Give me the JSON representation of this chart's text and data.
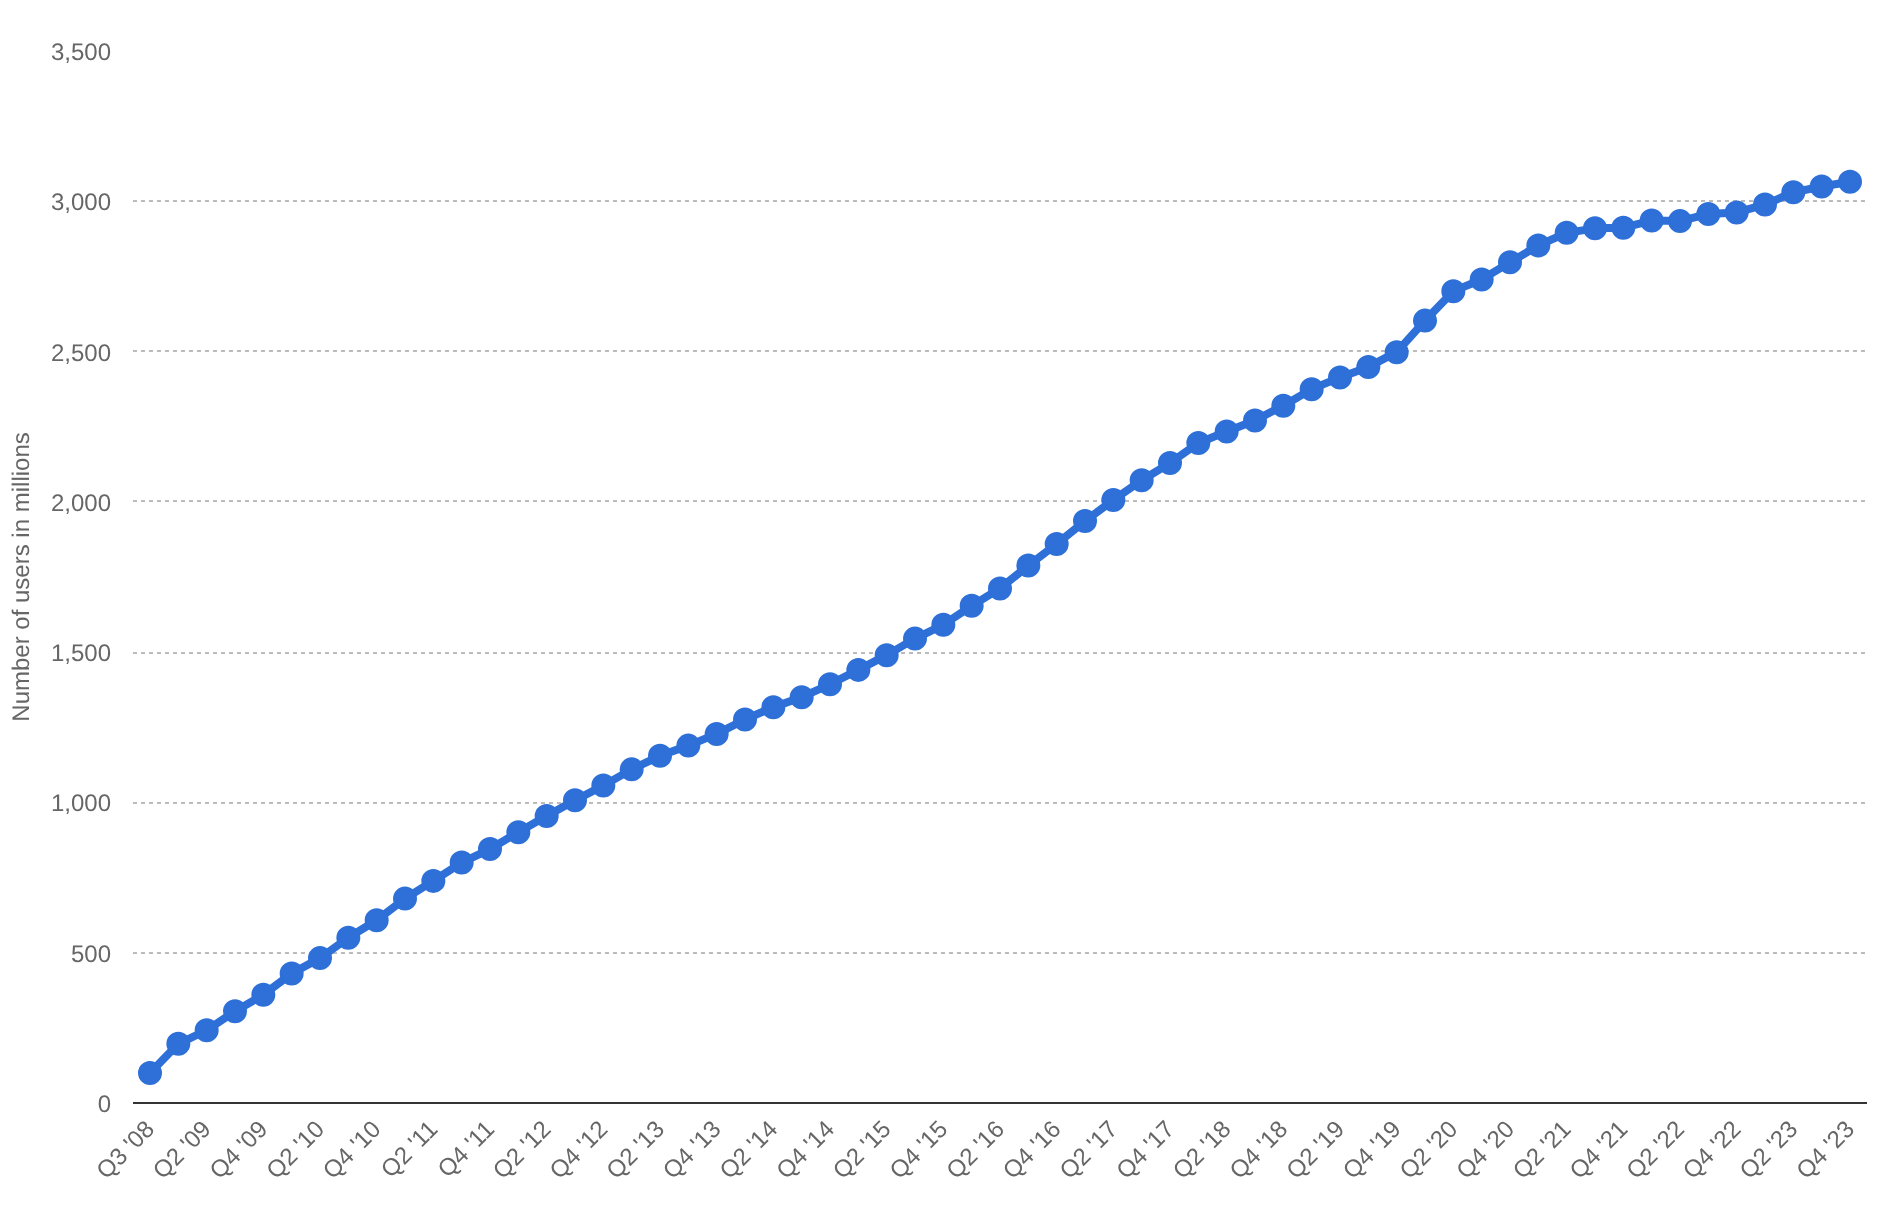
{
  "chart_data": {
    "type": "line",
    "ylabel": "Number of users in millions",
    "categories": [
      "Q3 '08",
      null,
      "Q2 '09",
      null,
      "Q4 '09",
      null,
      "Q2 '10",
      null,
      "Q4 '10",
      null,
      "Q2 '11",
      null,
      "Q4 '11",
      null,
      "Q2 '12",
      null,
      "Q4 '12",
      null,
      "Q2 '13",
      null,
      "Q4 '13",
      null,
      "Q2 '14",
      null,
      "Q4 '14",
      null,
      "Q2 '15",
      null,
      "Q4 '15",
      null,
      "Q2 '16",
      null,
      "Q4 '16",
      null,
      "Q2 '17",
      null,
      "Q4 '17",
      null,
      "Q2 '18",
      null,
      "Q4 '18",
      null,
      "Q2 '19",
      null,
      "Q4 '19",
      null,
      "Q2 '20",
      null,
      "Q4 '20",
      null,
      "Q2 '21",
      null,
      "Q4 '21",
      null,
      "Q2 '22",
      null,
      "Q4 '22",
      null,
      "Q2 '23",
      null,
      "Q4 '23"
    ],
    "series": [
      {
        "color": "#2e70d8",
        "values": [
          100,
          197,
          242,
          305,
          360,
          431,
          482,
          550,
          608,
          680,
          739,
          800,
          845,
          901,
          955,
          1007,
          1056,
          1110,
          1155,
          1189,
          1228,
          1276,
          1317,
          1350,
          1393,
          1441,
          1490,
          1545,
          1591,
          1654,
          1712,
          1788,
          1860,
          1936,
          2006,
          2072,
          2129,
          2196,
          2234,
          2271,
          2320,
          2375,
          2414,
          2449,
          2498,
          2603,
          2701,
          2740,
          2797,
          2853,
          2895,
          2910,
          2912,
          2936,
          2934,
          2958,
          2963,
          2989,
          3030,
          3049,
          3065
        ]
      }
    ],
    "ylim": [
      0,
      3500
    ],
    "yticks": [
      {
        "value": 0,
        "label": "0"
      },
      {
        "value": 500,
        "label": "500"
      },
      {
        "value": 1000,
        "label": "1,000"
      },
      {
        "value": 1500,
        "label": "1,500"
      },
      {
        "value": 2000,
        "label": "2,000"
      },
      {
        "value": 2500,
        "label": "2,500"
      },
      {
        "value": 3000,
        "label": "3,000"
      },
      {
        "value": 3500,
        "label": "3,500"
      }
    ],
    "grid": "y",
    "marker": "circle",
    "line_style": "solid"
  }
}
